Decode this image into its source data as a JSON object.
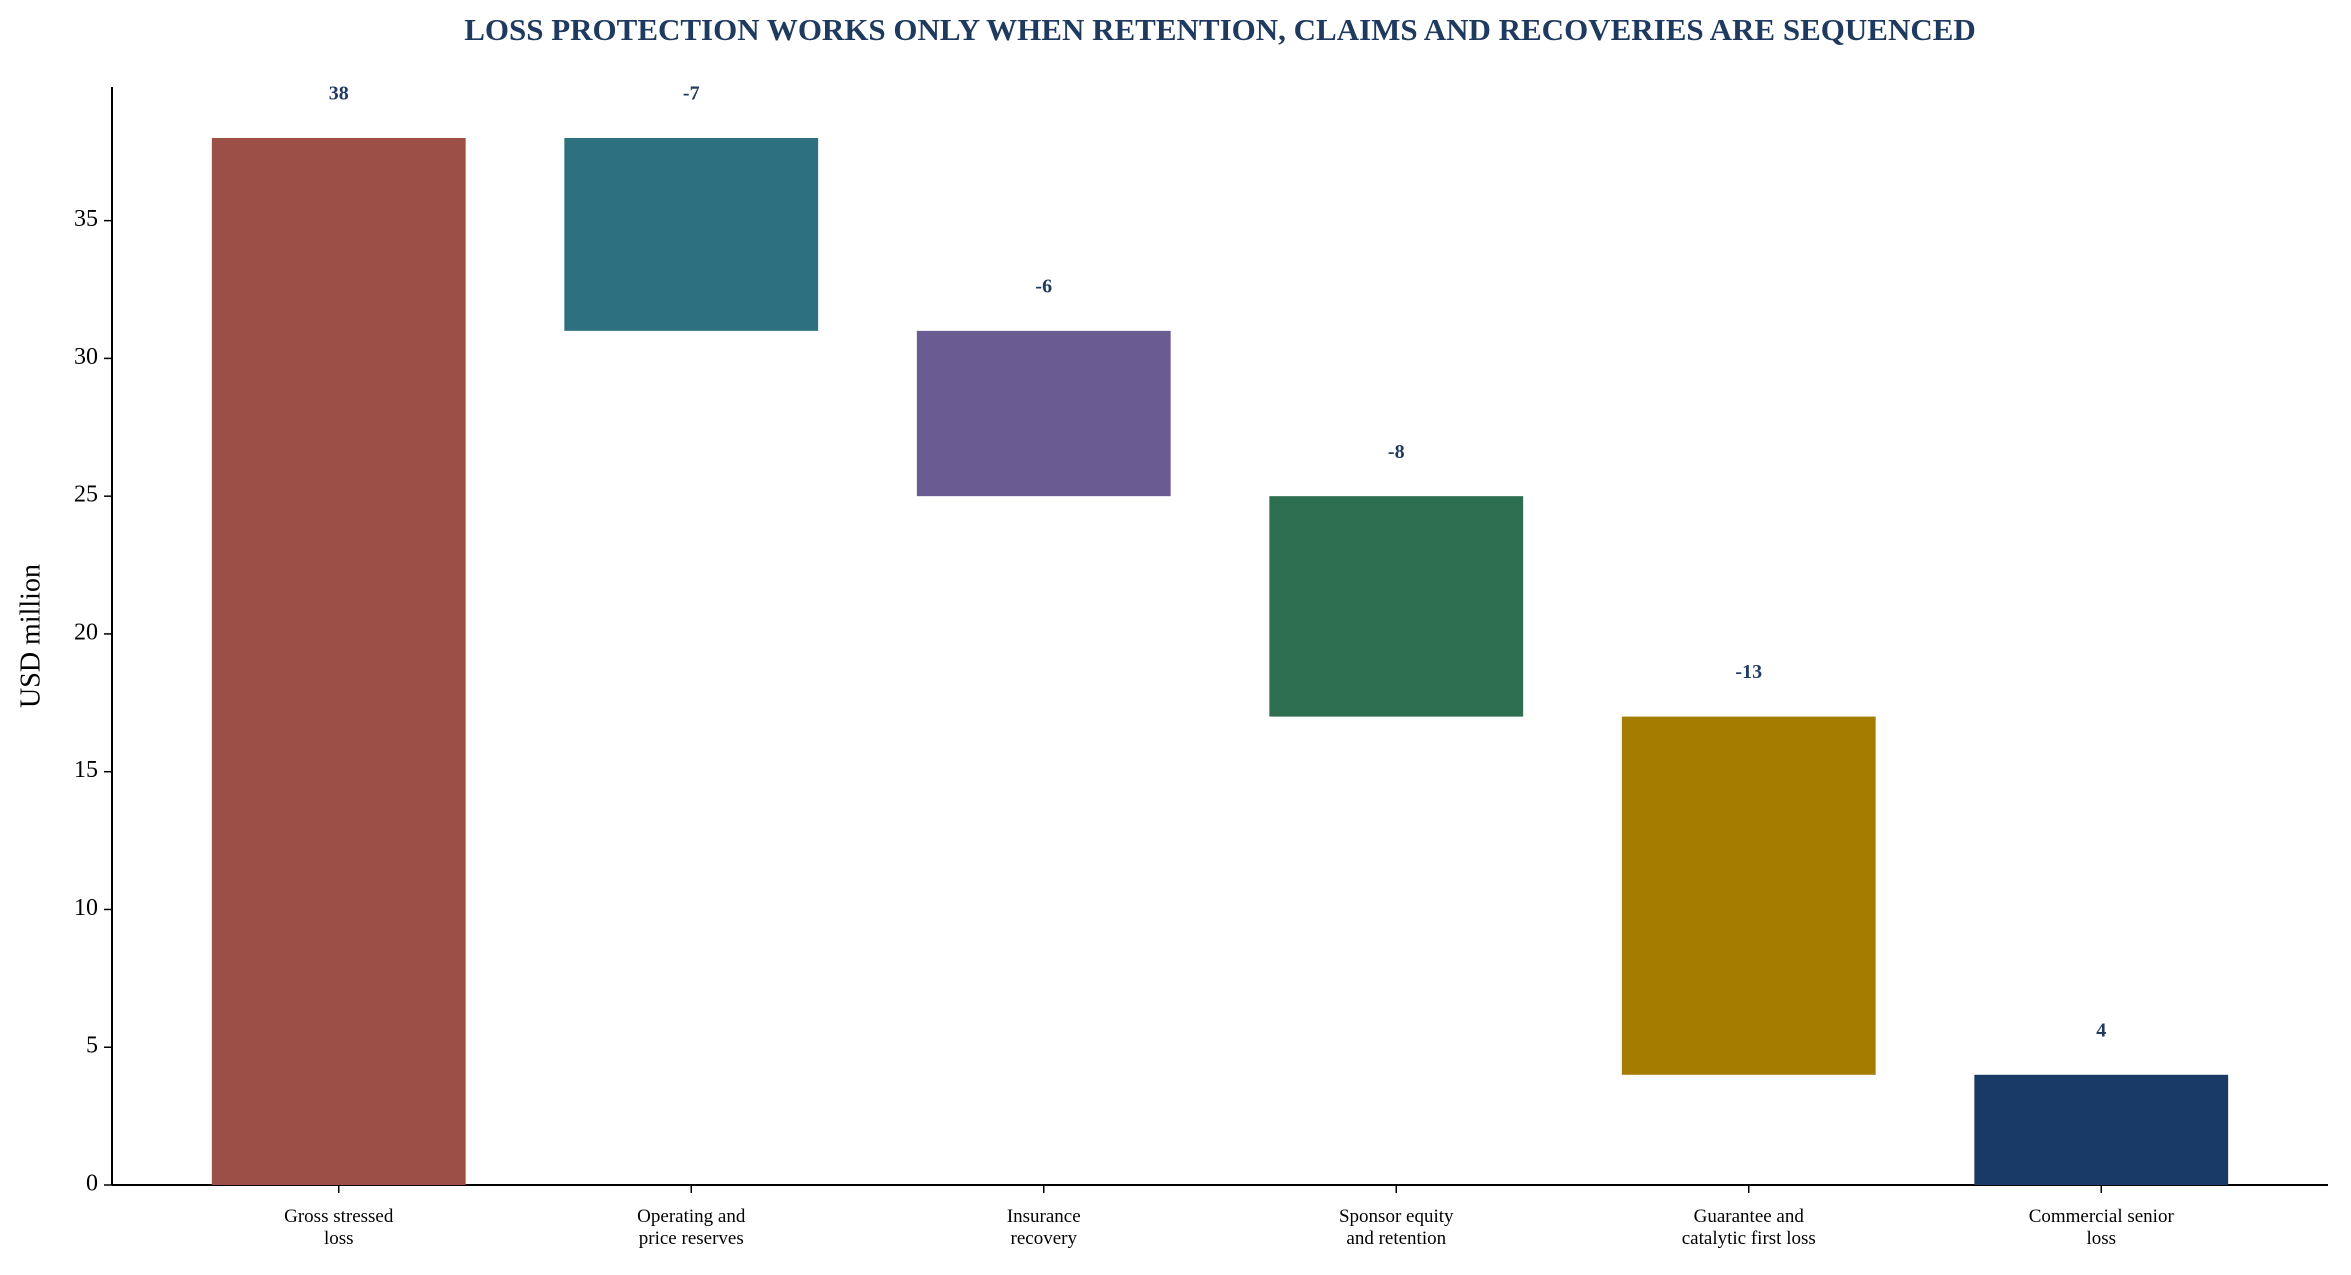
{
  "chart_data": {
    "type": "waterfall",
    "title": "LOSS PROTECTION WORKS ONLY WHEN RETENTION, CLAIMS AND RECOVERIES ARE SEQUENCED",
    "y_label": "USD million",
    "categories": [
      "Gross stressed\nloss",
      "Operating and\nprice reserves",
      "Insurance\nrecovery",
      "Sponsor equity\nand retention",
      "Guarantee and\ncatalytic first loss",
      "Commercial senior\nloss"
    ],
    "values": [
      38,
      -7,
      -6,
      -8,
      -13,
      4
    ],
    "measures": [
      "absolute",
      "relative",
      "relative",
      "relative",
      "relative",
      "total"
    ],
    "colors": [
      "#9c5045",
      "#2d7080",
      "#6b5b93",
      "#2e6e50",
      "#a67c00",
      "#1a3a66"
    ],
    "ylim": [
      0,
      39.85
    ],
    "yticks": [
      0,
      5,
      10,
      15,
      20,
      25,
      30,
      35
    ]
  }
}
